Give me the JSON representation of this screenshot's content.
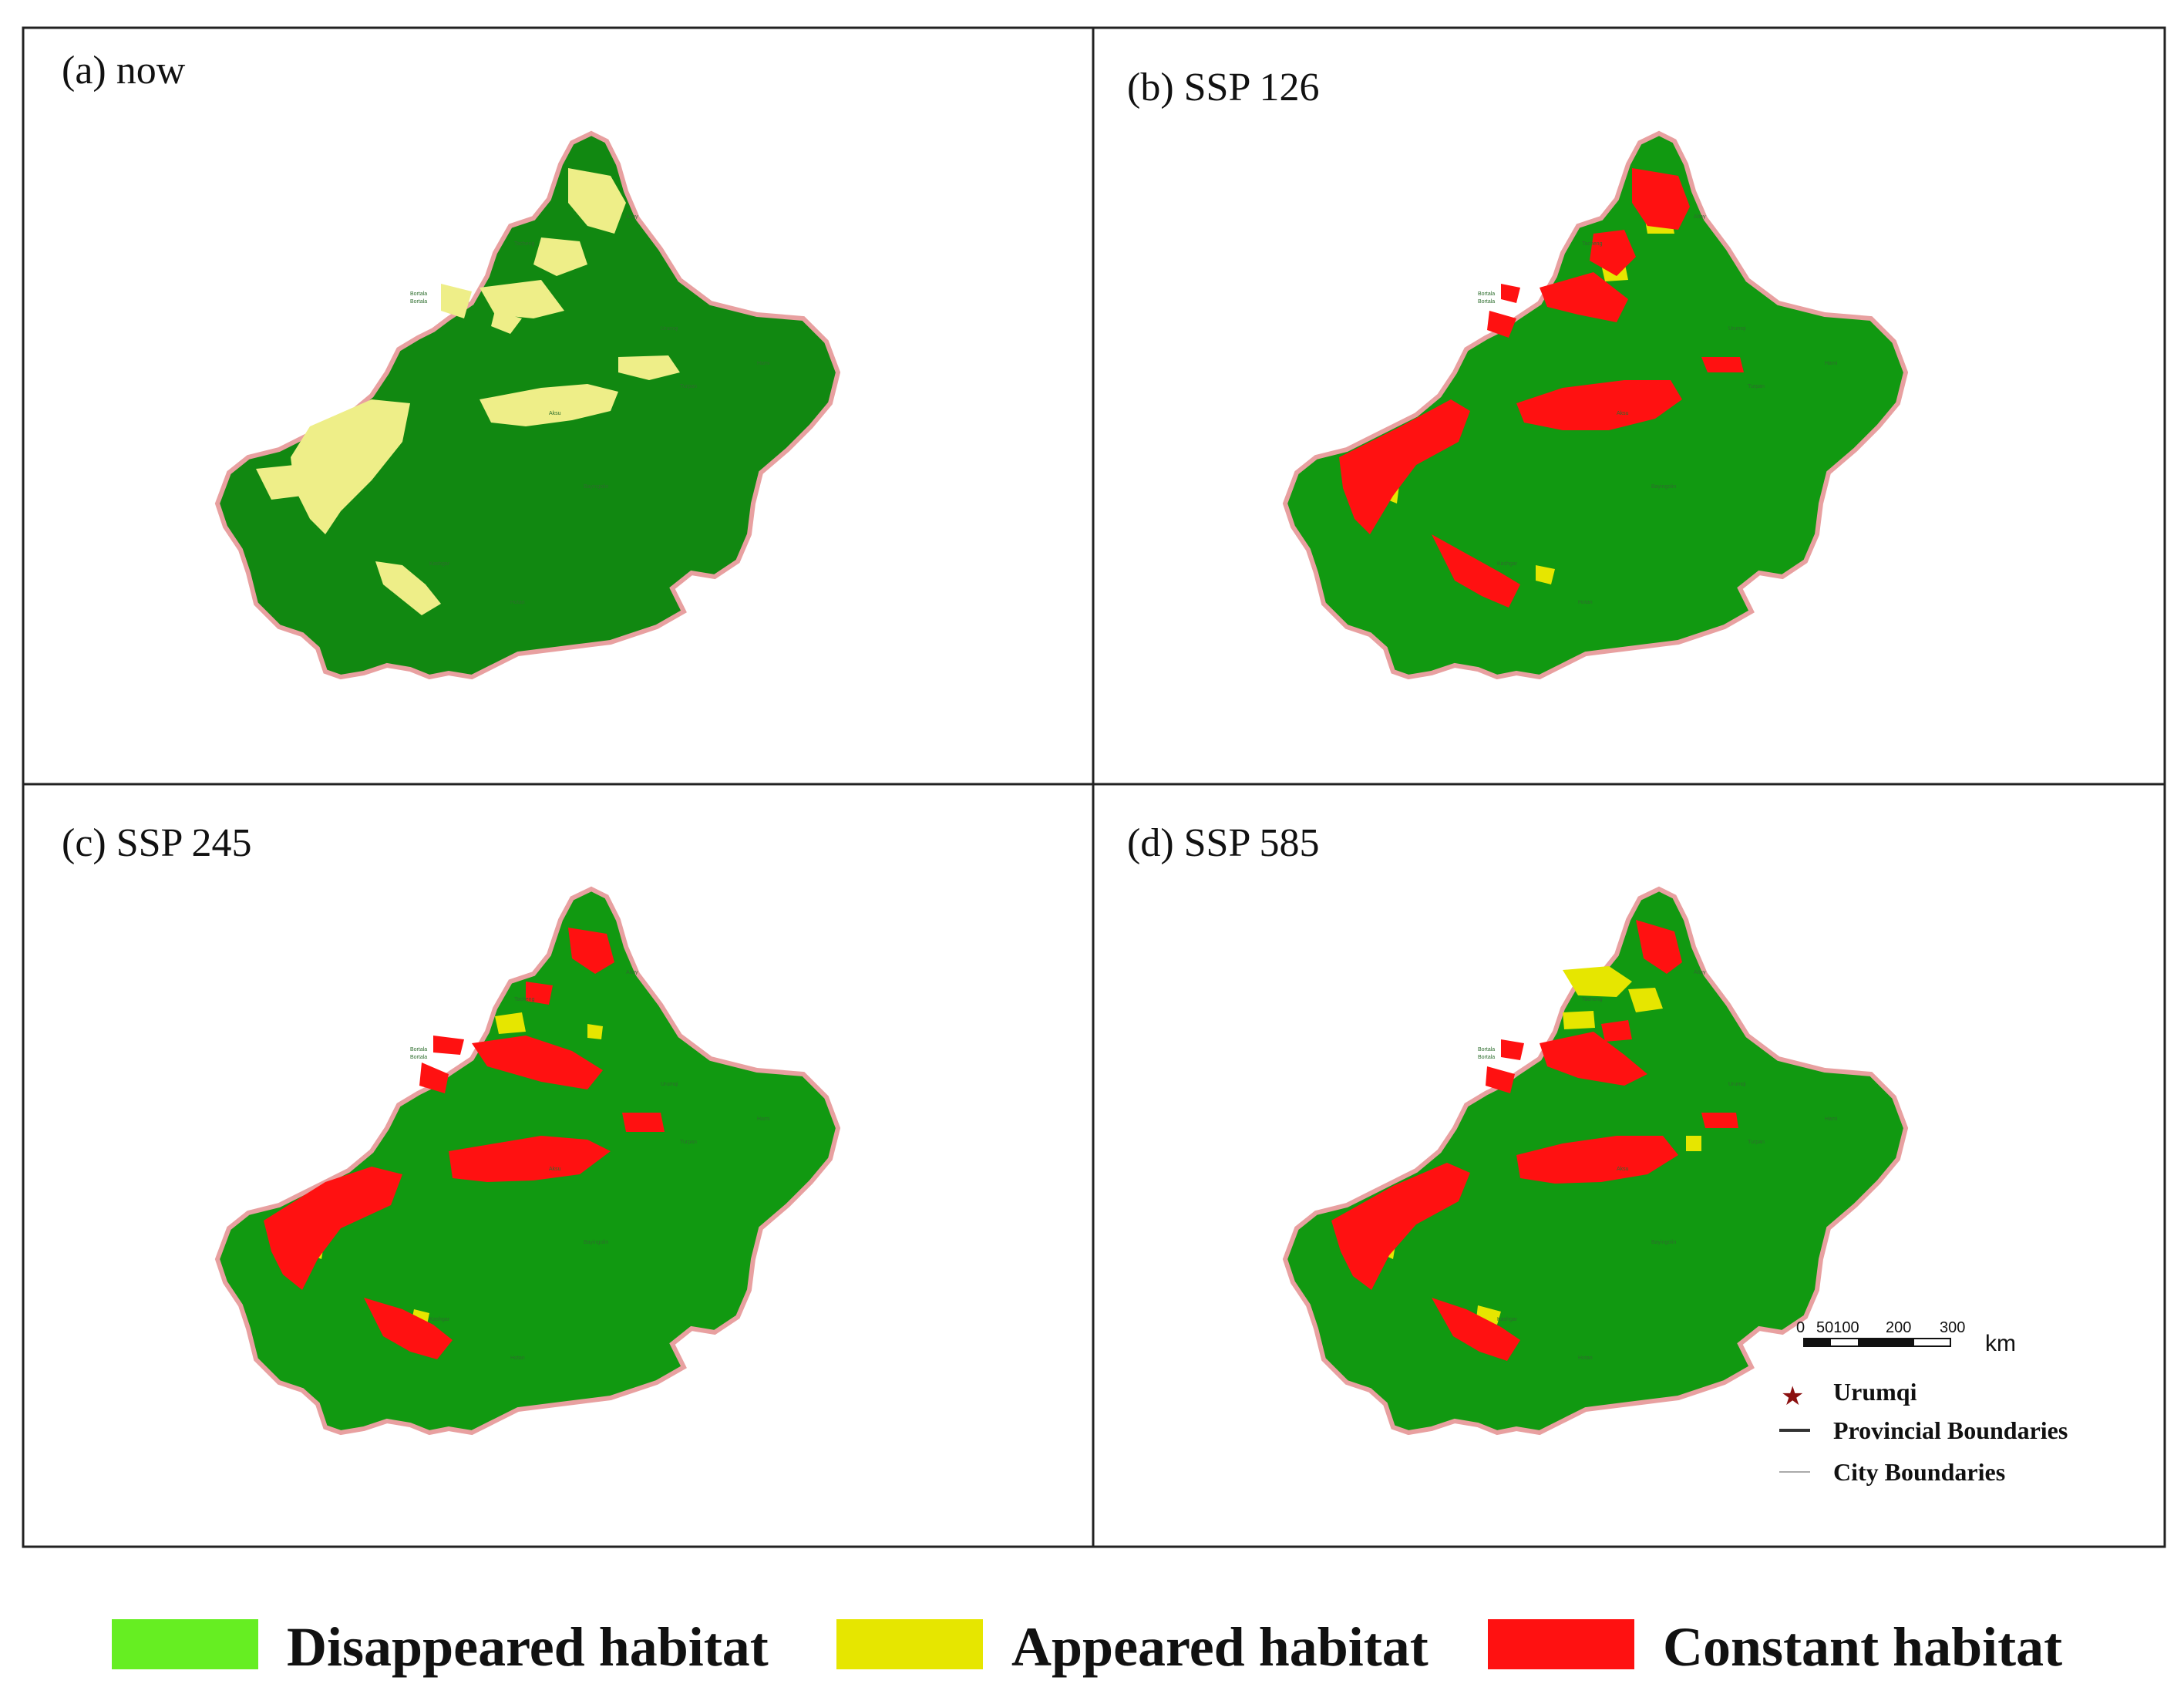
{
  "figure": {
    "panels": [
      {
        "id": "a",
        "label": "(a) now"
      },
      {
        "id": "b",
        "label": "(b) SSP 126"
      },
      {
        "id": "c",
        "label": "(c) SSP 245"
      },
      {
        "id": "d",
        "label": "(d) SSP 585"
      }
    ],
    "legend": [
      {
        "label": "Disappeared habitat",
        "color": "#66ee22"
      },
      {
        "label": "Appeared habitat",
        "color": "#e6e600"
      },
      {
        "label": "Constant habitat",
        "color": "#ff1111"
      }
    ],
    "map_key": {
      "urumqi": "Urumqi",
      "provincial": "Provincial Boundaries",
      "city": "City Boundaries"
    },
    "scale_bar": {
      "ticks": [
        "0",
        "50100",
        "200",
        "300"
      ],
      "unit": "km"
    },
    "colors": {
      "region_fill": "#119911",
      "region_fill_now": "#118811",
      "border": "#e8a0a0",
      "appeared": "#e6e600",
      "appeared_now": "#eeee88",
      "constant": "#ff1111",
      "urumqi_star": "#8b1010"
    }
  }
}
